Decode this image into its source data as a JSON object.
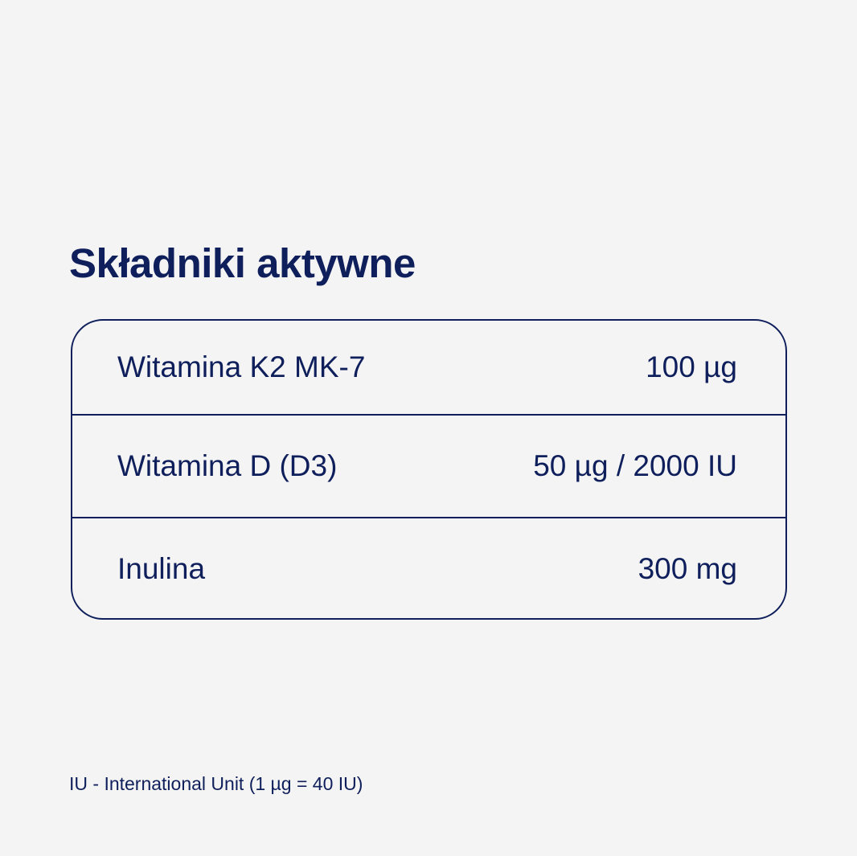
{
  "title": "Składniki aktywne",
  "ingredients": [
    {
      "name": "Witamina K2 MK-7",
      "amount": "100 µg"
    },
    {
      "name": "Witamina D (D3)",
      "amount": "50 µg / 2000 IU"
    },
    {
      "name": "Inulina",
      "amount": "300 mg"
    }
  ],
  "footnote": "IU - International Unit (1 µg = 40 IU)",
  "colors": {
    "text": "#0f1f5c",
    "background": "#f4f4f4"
  }
}
